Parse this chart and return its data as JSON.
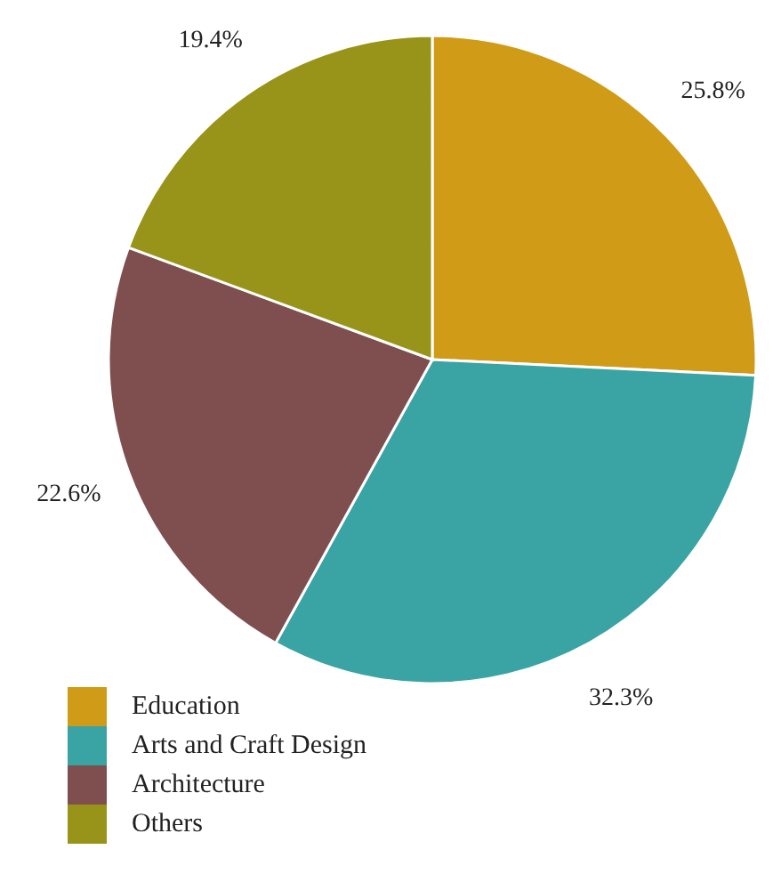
{
  "chart_data": {
    "type": "pie",
    "categories": [
      "Education",
      "Arts and Craft Design",
      "Architecture",
      "Others"
    ],
    "values": [
      25.8,
      32.3,
      22.6,
      19.4
    ],
    "colors": [
      "#d09b17",
      "#3aa3a3",
      "#7f4f4f",
      "#989419"
    ],
    "value_labels": [
      "25.8%",
      "32.3%",
      "22.6%",
      "19.4%"
    ],
    "legend": "bottom"
  }
}
